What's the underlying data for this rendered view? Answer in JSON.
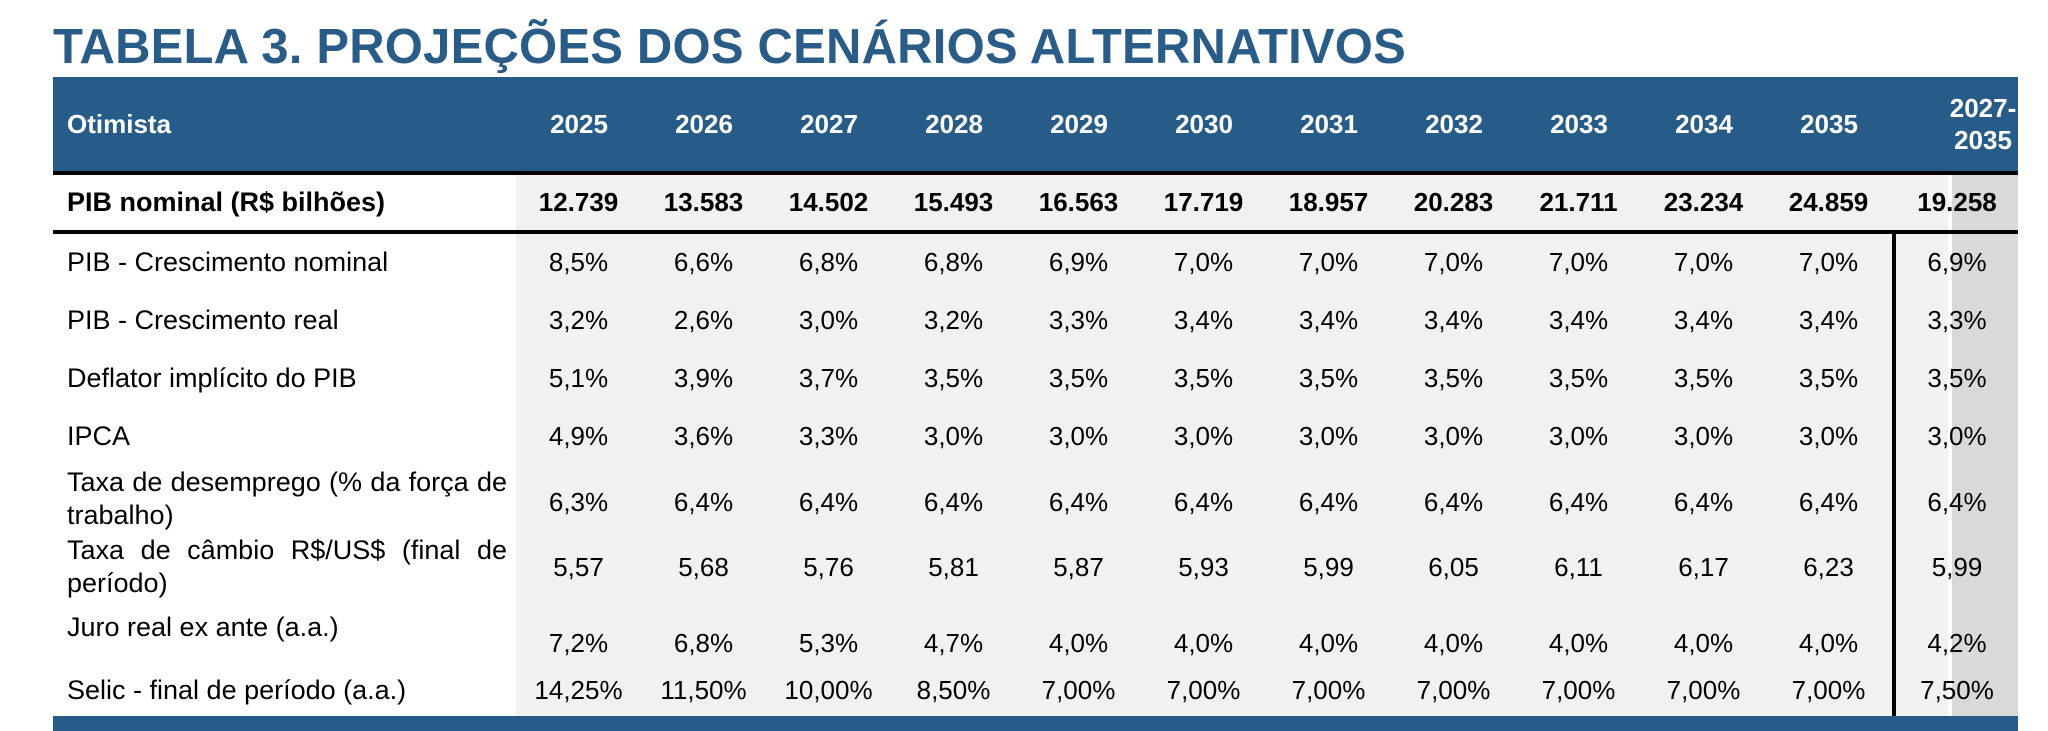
{
  "title": "TABELA 3. PROJEÇÕES DOS CENÁRIOS ALTERNATIVOS",
  "header": {
    "label": "Otimista",
    "years": [
      "2025",
      "2026",
      "2027",
      "2028",
      "2029",
      "2030",
      "2031",
      "2032",
      "2033",
      "2034",
      "2035"
    ],
    "total_line1": "2027-",
    "total_line2": "2035"
  },
  "rows": [
    {
      "label": "PIB nominal (R$ bilhões)",
      "values": [
        "12.739",
        "13.583",
        "14.502",
        "15.493",
        "16.563",
        "17.719",
        "18.957",
        "20.283",
        "21.711",
        "23.234",
        "24.859"
      ],
      "total": "19.258"
    },
    {
      "label": "PIB - Crescimento nominal",
      "values": [
        "8,5%",
        "6,6%",
        "6,8%",
        "6,8%",
        "6,9%",
        "7,0%",
        "7,0%",
        "7,0%",
        "7,0%",
        "7,0%",
        "7,0%"
      ],
      "total": "6,9%"
    },
    {
      "label": "PIB - Crescimento real",
      "values": [
        "3,2%",
        "2,6%",
        "3,0%",
        "3,2%",
        "3,3%",
        "3,4%",
        "3,4%",
        "3,4%",
        "3,4%",
        "3,4%",
        "3,4%"
      ],
      "total": "3,3%"
    },
    {
      "label": "Deflator implícito do PIB",
      "values": [
        "5,1%",
        "3,9%",
        "3,7%",
        "3,5%",
        "3,5%",
        "3,5%",
        "3,5%",
        "3,5%",
        "3,5%",
        "3,5%",
        "3,5%"
      ],
      "total": "3,5%"
    },
    {
      "label": "IPCA",
      "values": [
        "4,9%",
        "3,6%",
        "3,3%",
        "3,0%",
        "3,0%",
        "3,0%",
        "3,0%",
        "3,0%",
        "3,0%",
        "3,0%",
        "3,0%"
      ],
      "total": "3,0%"
    },
    {
      "label": "Taxa de desemprego (% da força de trabalho)",
      "values": [
        "6,3%",
        "6,4%",
        "6,4%",
        "6,4%",
        "6,4%",
        "6,4%",
        "6,4%",
        "6,4%",
        "6,4%",
        "6,4%",
        "6,4%"
      ],
      "total": "6,4%"
    },
    {
      "label": "Taxa de câmbio R$/US$ (final de período)",
      "values": [
        "5,57",
        "5,68",
        "5,76",
        "5,81",
        "5,87",
        "5,93",
        "5,99",
        "6,05",
        "6,11",
        "6,17",
        "6,23"
      ],
      "total": "5,99"
    },
    {
      "label": "Juro real ex ante (a.a.)",
      "values": [
        "7,2%",
        "6,8%",
        "5,3%",
        "4,7%",
        "4,0%",
        "4,0%",
        "4,0%",
        "4,0%",
        "4,0%",
        "4,0%",
        "4,0%"
      ],
      "total": "4,2%"
    },
    {
      "label": "Selic - final de período (a.a.)",
      "values": [
        "14,25%",
        "11,50%",
        "10,00%",
        "8,50%",
        "7,00%",
        "7,00%",
        "7,00%",
        "7,00%",
        "7,00%",
        "7,00%",
        "7,00%"
      ],
      "total": "7,50%"
    }
  ]
}
